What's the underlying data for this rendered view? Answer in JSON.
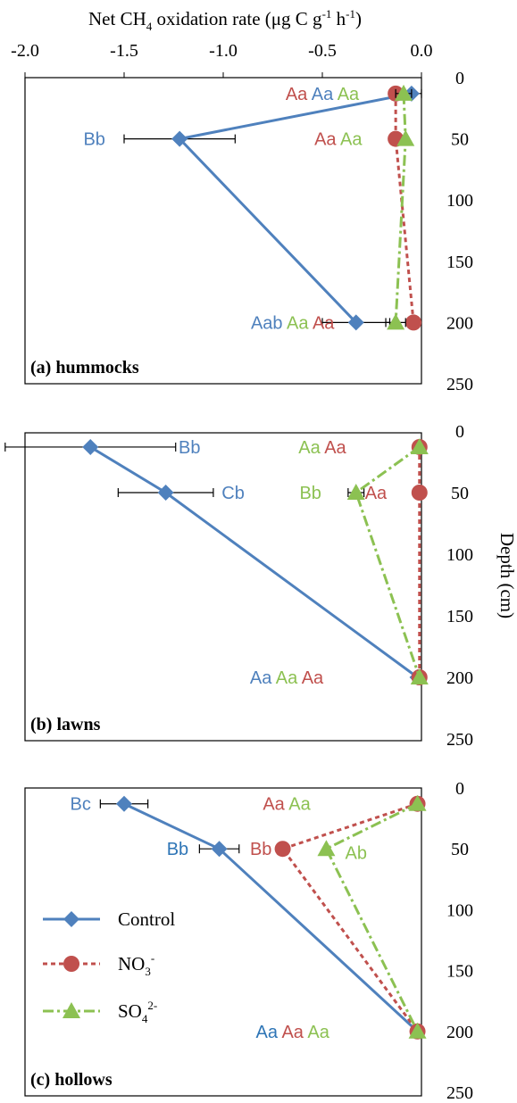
{
  "figure": {
    "x_title_parts": [
      "Net CH",
      "4",
      " oxidation rate (μg C g",
      "-1",
      " h",
      "-1",
      ")"
    ],
    "y_title": "Depth (cm)",
    "x_tick_labels": [
      "-2.0",
      "-1.5",
      "-1.0",
      "-0.5",
      "0.0"
    ],
    "y_tick_labels": [
      "0",
      "50",
      "100",
      "150",
      "200",
      "250"
    ]
  },
  "colors": {
    "control": "#4f81bd",
    "no3": "#c0504d",
    "so4": "#8cc152",
    "error_bar": "#000000",
    "label_blue_alt": "#2e75b6"
  },
  "legend": {
    "control": "Control",
    "no3_base": "NO",
    "no3_sub": "3",
    "no3_sup": "-",
    "so4_base": "SO",
    "so4_sub": "4",
    "so4_sup": "2-"
  },
  "chart_data": [
    {
      "type": "line",
      "panel_label": "(a) hummocks",
      "xlabel": "Net CH4 oxidation rate (μg C g-1 h-1)",
      "ylabel": "Depth (cm)",
      "xlim": [
        -2.0,
        0.0
      ],
      "ylim": [
        0,
        250
      ],
      "y_inverted": true,
      "series": [
        {
          "name": "Control",
          "x": [
            -0.05,
            -1.22,
            -0.33
          ],
          "y": [
            13,
            50,
            200
          ],
          "err": [
            0.06,
            0.28,
            0.17
          ]
        },
        {
          "name": "NO3-",
          "x": [
            -0.13,
            -0.13,
            -0.04
          ],
          "y": [
            13,
            50,
            200
          ],
          "err": [
            0.0,
            0.0,
            0.0
          ]
        },
        {
          "name": "SO42-",
          "x": [
            -0.09,
            -0.08,
            -0.13
          ],
          "y": [
            13,
            50,
            200
          ],
          "err": [
            0.04,
            0.0,
            0.05
          ]
        }
      ],
      "annotations": [
        {
          "x": -0.5,
          "y": 13,
          "parts": [
            {
              "text": "Aa",
              "series": "no3"
            },
            {
              "text": "Aa",
              "series": "control"
            },
            {
              "text": "Aa",
              "series": "so4"
            }
          ]
        },
        {
          "x": -1.65,
          "y": 50,
          "parts": [
            {
              "text": "Bb",
              "series": "control"
            }
          ]
        },
        {
          "x": -0.42,
          "y": 50,
          "parts": [
            {
              "text": "Aa",
              "series": "no3"
            },
            {
              "text": "Aa",
              "series": "so4"
            }
          ]
        },
        {
          "x": -0.65,
          "y": 200,
          "parts": [
            {
              "text": "Aab",
              "series": "control"
            },
            {
              "text": "Aa",
              "series": "so4"
            },
            {
              "text": "Aa",
              "series": "no3"
            }
          ]
        }
      ]
    },
    {
      "type": "line",
      "panel_label": "(b) lawns",
      "xlabel": "Net CH4 oxidation rate (μg C g-1 h-1)",
      "ylabel": "Depth (cm)",
      "xlim": [
        -2.0,
        0.0
      ],
      "ylim": [
        0,
        250
      ],
      "y_inverted": true,
      "series": [
        {
          "name": "Control",
          "x": [
            -1.67,
            -1.29,
            -0.02
          ],
          "y": [
            13,
            50,
            200
          ],
          "err": [
            0.43,
            0.24,
            0.0
          ]
        },
        {
          "name": "NO3-",
          "x": [
            -0.01,
            -0.01,
            -0.01
          ],
          "y": [
            13,
            50,
            200
          ],
          "err": [
            0.0,
            0.0,
            0.0
          ]
        },
        {
          "name": "SO42-",
          "x": [
            -0.01,
            -0.33,
            -0.01
          ],
          "y": [
            13,
            50,
            200
          ],
          "err": [
            0.0,
            0.04,
            0.0
          ]
        }
      ],
      "annotations": [
        {
          "x": -1.17,
          "y": 13,
          "parts": [
            {
              "text": "Bb",
              "series": "control"
            }
          ]
        },
        {
          "x": -0.95,
          "y": 50,
          "parts": [
            {
              "text": "Cb",
              "series": "control"
            }
          ]
        },
        {
          "x": -0.5,
          "y": 13,
          "parts": [
            {
              "text": "Aa",
              "series": "so4"
            },
            {
              "text": "Aa",
              "series": "no3"
            }
          ]
        },
        {
          "x": -0.56,
          "y": 50,
          "parts": [
            {
              "text": "Bb",
              "series": "so4"
            }
          ]
        },
        {
          "x": -0.23,
          "y": 50,
          "parts": [
            {
              "text": "Aa",
              "series": "no3"
            }
          ]
        },
        {
          "x": -0.68,
          "y": 200,
          "parts": [
            {
              "text": "Aa",
              "series": "control"
            },
            {
              "text": "Aa",
              "series": "so4"
            },
            {
              "text": "Aa",
              "series": "no3"
            }
          ]
        }
      ]
    },
    {
      "type": "line",
      "panel_label": "(c) hollows",
      "xlabel": "Net CH4 oxidation rate (μg C g-1 h-1)",
      "ylabel": "Depth (cm)",
      "xlim": [
        -2.0,
        0.0
      ],
      "ylim": [
        0,
        250
      ],
      "y_inverted": true,
      "series": [
        {
          "name": "Control",
          "x": [
            -1.5,
            -1.02,
            -0.02
          ],
          "y": [
            13,
            50,
            200
          ],
          "err": [
            0.12,
            0.1,
            0.0
          ]
        },
        {
          "name": "NO3-",
          "x": [
            -0.02,
            -0.7,
            -0.02
          ],
          "y": [
            13,
            50,
            200
          ],
          "err": [
            0.0,
            0.0,
            0.0
          ]
        },
        {
          "name": "SO42-",
          "x": [
            -0.02,
            -0.48,
            -0.02
          ],
          "y": [
            13,
            50,
            200
          ],
          "err": [
            0.0,
            0.0,
            0.0
          ]
        }
      ],
      "annotations": [
        {
          "x": -1.72,
          "y": 13,
          "parts": [
            {
              "text": "Bc",
              "series": "control"
            }
          ]
        },
        {
          "x": -0.68,
          "y": 13,
          "parts": [
            {
              "text": "Aa",
              "series": "no3"
            },
            {
              "text": "Aa",
              "series": "so4"
            }
          ]
        },
        {
          "x": -1.23,
          "y": 50,
          "parts": [
            {
              "text": "Bb",
              "series": "control_alt"
            }
          ]
        },
        {
          "x": -0.81,
          "y": 50,
          "parts": [
            {
              "text": "Bb",
              "series": "no3"
            }
          ]
        },
        {
          "x": -0.33,
          "y": 53,
          "parts": [
            {
              "text": "Ab",
              "series": "so4"
            }
          ]
        },
        {
          "x": -0.65,
          "y": 200,
          "parts": [
            {
              "text": "Aa",
              "series": "control_alt"
            },
            {
              "text": "Aa",
              "series": "no3"
            },
            {
              "text": "Aa",
              "series": "so4"
            }
          ]
        }
      ]
    }
  ]
}
